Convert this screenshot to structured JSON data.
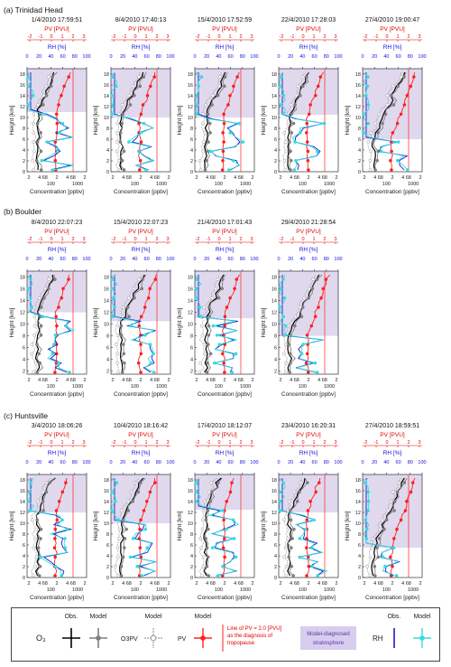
{
  "chart_data": {
    "type": "line",
    "common": {
      "pv_axis_label": "PV [PVU]",
      "pv_ticks": [
        "-2",
        "-1",
        "0",
        "1",
        "2",
        "3"
      ],
      "rh_axis_label": "RH [%]",
      "rh_ticks": [
        "0",
        "20",
        "40",
        "60",
        "80",
        "100"
      ],
      "height_axis_label": "Height [km]",
      "height_ticks_a": [
        "0",
        "2",
        "4",
        "6",
        "8",
        "10",
        "12",
        "14",
        "16",
        "18"
      ],
      "height_ticks_b": [
        "2",
        "4",
        "6",
        "8",
        "10",
        "12",
        "14",
        "16",
        "18"
      ],
      "conc_axis_label": "Concentration [ppbv]",
      "conc_tick_row1": [
        "2",
        "4 68",
        "2",
        "4 68",
        "2"
      ],
      "conc_tick_row2": [
        "100",
        "1000"
      ],
      "conc_tick_row2_short": [
        "100",
        "1000"
      ],
      "colors": {
        "o3_obs": "#000000",
        "o3_model": "#7f7f7f",
        "o3pv": "#999999",
        "pv": "#ff2020",
        "rh_obs": "#1a1acc",
        "rh_model": "#33dddd",
        "stratosphere": "#e0d9ee",
        "pv_axis": "#e00000",
        "rh_axis": "#1010dd"
      }
    },
    "sections": [
      {
        "title": "(a) Trinidad Head",
        "panels": [
          {
            "date": "1/4/2010 17:59:51",
            "tropopause_km": 11.0
          },
          {
            "date": "8/4/2010 17:40:13",
            "tropopause_km": 10.0
          },
          {
            "date": "15/4/2010 17:52:59",
            "tropopause_km": 10.0
          },
          {
            "date": "22/4/2010 17:28:03",
            "tropopause_km": 10.5
          },
          {
            "date": "27/4/2010 19:00:47",
            "tropopause_km": 6.0
          }
        ]
      },
      {
        "title": "(b) Boulder",
        "panels": [
          {
            "date": "8/4/2010 22:07:23",
            "tropopause_km": 12.0
          },
          {
            "date": "15/4/2010 22:07:23",
            "tropopause_km": 10.5
          },
          {
            "date": "21/4/2010 17:01:43",
            "tropopause_km": 11.0
          },
          {
            "date": "29/4/2010 21:28:54",
            "tropopause_km": 8.0
          }
        ]
      },
      {
        "title": "(c) Huntsville",
        "panels": [
          {
            "date": "3/4/2010 18:06:26",
            "tropopause_km": 12.0
          },
          {
            "date": "10/4/2010 18:16:42",
            "tropopause_km": 10.0
          },
          {
            "date": "17/4/2010 18:12:07",
            "tropopause_km": 12.5
          },
          {
            "date": "23/4/2010 16:20:31",
            "tropopause_km": 12.0
          },
          {
            "date": "27/4/2010 18:59:51",
            "tropopause_km": 5.5
          }
        ]
      }
    ]
  },
  "legend": {
    "obs": "Obs.",
    "model": "Model",
    "o3": "O₃",
    "o3pv": "O3PV",
    "pv": "PV",
    "pv_line_line1": "Line of PV = 2.0 [PVU]",
    "pv_line_line2": "as the diagnosis of",
    "pv_line_line3": "tropopause",
    "strat_line1": "Model-diagnosed",
    "strat_line2": "stratosphere",
    "rh": "RH"
  }
}
